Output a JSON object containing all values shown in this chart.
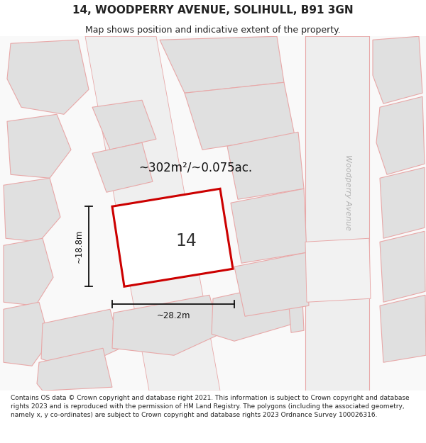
{
  "title": "14, WOODPERRY AVENUE, SOLIHULL, B91 3GN",
  "subtitle": "Map shows position and indicative extent of the property.",
  "footer": "Contains OS data © Crown copyright and database right 2021. This information is subject to Crown copyright and database rights 2023 and is reproduced with the permission of HM Land Registry. The polygons (including the associated geometry, namely x, y co-ordinates) are subject to Crown copyright and database rights 2023 Ordnance Survey 100026316.",
  "area_label": "~302m²/~0.075ac.",
  "number_label": "14",
  "width_label": "~28.2m",
  "height_label": "~18.8m",
  "road_color": "#f2c8c8",
  "plot_outline_color": "#cc0000",
  "parcel_fill": "#e0e0e0",
  "parcel_edge": "#e8a8a8",
  "road_area_fill": "#ebebeb",
  "street_name": "Woodperry Avenue",
  "dim_line_color": "#111111",
  "title_fontsize": 11,
  "subtitle_fontsize": 9,
  "footer_fontsize": 6.5,
  "map_bg": "#f8f8f8"
}
